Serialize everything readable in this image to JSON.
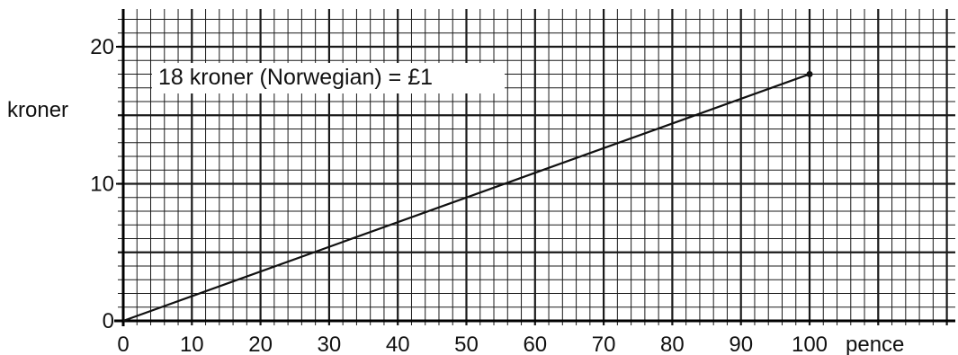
{
  "chart_data": {
    "type": "line",
    "xlabel": "pence",
    "ylabel": "kroner",
    "xlim": [
      0,
      100
    ],
    "ylim": [
      0,
      20
    ],
    "x_ticks": [
      0,
      10,
      20,
      30,
      40,
      50,
      60,
      70,
      80,
      90,
      100
    ],
    "y_ticks": [
      0,
      10,
      20
    ],
    "grid": true,
    "series": [
      {
        "points": [
          [
            0,
            0
          ],
          [
            100,
            18
          ]
        ],
        "end_marker": true
      }
    ],
    "annotation": "18 kroner (Norwegian) = £1",
    "colors": {
      "line": "#111111",
      "grid": "#1a1a1a",
      "background": "#ffffff"
    }
  }
}
